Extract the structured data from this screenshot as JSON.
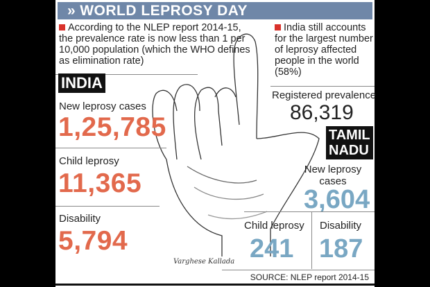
{
  "header": {
    "icon": "double-chevron-icon",
    "title": "WORLD LEPROSY DAY"
  },
  "notes": {
    "left": "According to the NLEP report 2014-15, the prevalence rate is now less than 1 per 10,000 population (which the WHO defines as elimination rate)",
    "right": "India still accounts for the largest number of leprosy affected people in the world (58%)"
  },
  "india": {
    "tag": "INDIA",
    "new_cases": {
      "label": "New leprosy cases",
      "value": "1,25,785"
    },
    "child": {
      "label": "Child leprosy",
      "value": "11,365"
    },
    "disability": {
      "label": "Disability",
      "value": "5,794"
    },
    "registered": {
      "label": "Registered prevalence",
      "value": "86,319"
    }
  },
  "tamil_nadu": {
    "tag_line1": "TAMIL",
    "tag_line2": "NADU",
    "new_cases": {
      "label": "New leprosy cases",
      "value": "3,604"
    },
    "child": {
      "label": "Child leprosy",
      "value": "241"
    },
    "disability": {
      "label": "Disability",
      "value": "187"
    }
  },
  "signature": "Varghese Kallada",
  "source": "SOURCE:  NLEP report 2014-15",
  "colors": {
    "header": "#6f87a8",
    "india_numbers": "#e2694c",
    "tn_numbers": "#79a7c3",
    "bullet": "#d9322b"
  }
}
